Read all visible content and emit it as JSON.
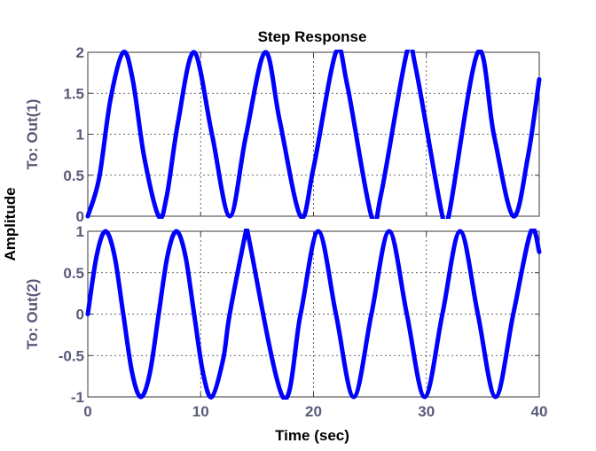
{
  "chart_data": {
    "type": "line",
    "title": "Step Response",
    "xlabel": "Time (sec)",
    "ylabel": "Amplitude",
    "xlim": [
      0,
      40
    ],
    "xticks": [
      0,
      10,
      20,
      30,
      40
    ],
    "grid": true,
    "line_color": "#0000ff",
    "panels": [
      {
        "ylabel": "To: Out(1)",
        "ylim": [
          0,
          2
        ],
        "yticks": [
          "0",
          "0.5",
          "1",
          "1.5",
          "2"
        ],
        "series": [
          {
            "x": [
              0,
              1,
              2,
              3.14,
              4,
              5,
              6.28,
              7,
              8,
              9.42,
              11,
              12.57,
              14,
              15.71,
              17,
              18.85,
              20,
              21.99,
              23,
              25.13,
              26,
              28.27,
              29,
              31.42,
              32,
              34.56,
              36,
              37.7,
              39,
              40
            ],
            "y": [
              0,
              0.46,
              1.42,
              2.0,
              1.65,
              0.72,
              0,
              0.25,
              1.15,
              2.0,
              1.0,
              0,
              0.97,
              2.0,
              1.17,
              0,
              0.59,
              2.0,
              1.59,
              0,
              0.28,
              2.0,
              1.85,
              0,
              0.02,
              2.0,
              0.98,
              0,
              0.73,
              1.67
            ]
          }
        ]
      },
      {
        "ylabel": "To: Out(2)",
        "ylim": [
          -1,
          1
        ],
        "yticks": [
          "-1",
          "-0.5",
          "0",
          "0.5",
          "1"
        ],
        "series": [
          {
            "x": [
              0,
              0.79,
              1.57,
              2.36,
              3.14,
              3.93,
              4.71,
              5.5,
              6.28,
              7.07,
              7.85,
              8.64,
              9.42,
              10.21,
              10.99,
              12,
              12.57,
              14,
              14.14,
              17.28,
              18.85,
              20.42,
              21.99,
              23.56,
              25.13,
              26.7,
              28.27,
              29.85,
              31.42,
              32.99,
              34.56,
              36.13,
              37.7,
              39.27,
              40
            ],
            "y": [
              0,
              0.71,
              1.0,
              0.71,
              0,
              -0.71,
              -1.0,
              -0.71,
              0,
              0.71,
              1.0,
              0.71,
              0,
              -0.71,
              -1.0,
              -0.54,
              0,
              0.99,
              1.0,
              -1.0,
              0,
              1.0,
              0,
              -1.0,
              0,
              1.0,
              0,
              -1.0,
              0,
              1.0,
              0,
              -1.0,
              0,
              1.0,
              0.75
            ]
          }
        ]
      }
    ]
  }
}
